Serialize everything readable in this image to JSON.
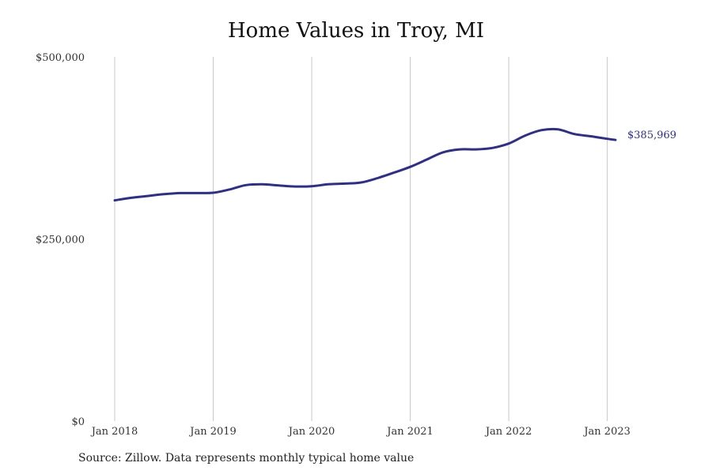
{
  "title": "Home Values in Troy, MI",
  "source": "Source: Zillow. Data represents monthly typical home value",
  "colors": {
    "line": "#2e2f8c",
    "grid": "#c8c8c8",
    "text": "#333333"
  },
  "chart_data": {
    "type": "line",
    "title": "Home Values in Troy, MI",
    "xlabel": "",
    "ylabel": "",
    "y_ticks": [
      0,
      250000,
      500000
    ],
    "y_tick_labels": [
      "$0",
      "$250,000",
      "$500,000"
    ],
    "ylim": [
      0,
      500000
    ],
    "x_ticks": [
      "2018-01",
      "2019-01",
      "2020-01",
      "2021-01",
      "2022-01",
      "2023-01"
    ],
    "x_tick_labels": [
      "Jan 2018",
      "Jan 2019",
      "Jan 2020",
      "Jan 2021",
      "Jan 2022",
      "Jan 2023"
    ],
    "xlim": [
      "2018-01",
      "2023-02"
    ],
    "grid": "vertical",
    "end_label": "$385,969",
    "series": [
      {
        "x": [
          "2018-01",
          "2018-03",
          "2018-05",
          "2018-07",
          "2018-09",
          "2018-11",
          "2019-01",
          "2019-03",
          "2019-05",
          "2019-07",
          "2019-09",
          "2019-11",
          "2020-01",
          "2020-03",
          "2020-05",
          "2020-07",
          "2020-09",
          "2020-11",
          "2021-01",
          "2021-03",
          "2021-05",
          "2021-07",
          "2021-09",
          "2021-11",
          "2022-01",
          "2022-03",
          "2022-05",
          "2022-07",
          "2022-09",
          "2022-11",
          "2023-01",
          "2023-02"
        ],
        "values": [
          303000,
          306500,
          309000,
          311500,
          313000,
          313000,
          313500,
          318000,
          324000,
          325000,
          323500,
          322000,
          322500,
          325000,
          326000,
          327500,
          333500,
          341000,
          349000,
          359000,
          369000,
          373000,
          373000,
          375000,
          381000,
          392000,
          399500,
          400500,
          394000,
          391000,
          387500,
          385969
        ]
      }
    ]
  }
}
